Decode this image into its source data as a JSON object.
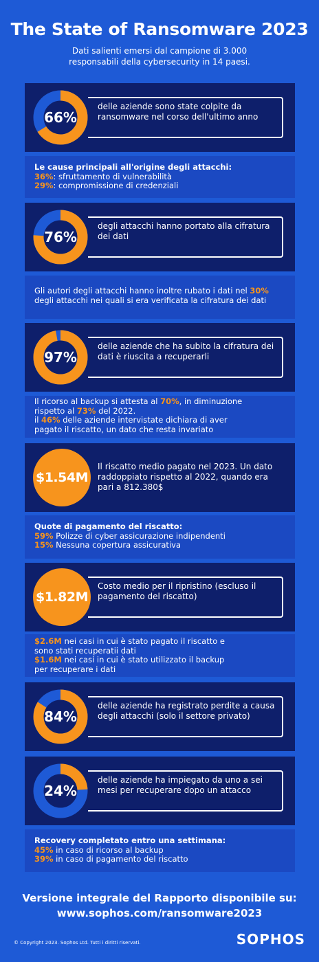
{
  "header": {
    "title": "The State of Ransomware 2023",
    "subtitle_line1": "Dati salienti emersi dal campione di 3.000",
    "subtitle_line2": "responsabili della cybersecurity in 14 paesi."
  },
  "colors": {
    "background": "#1e5ad6",
    "panel": "#0e1f6b",
    "note": "#1b49c2",
    "accent": "#f7941d",
    "ring_base": "#1e5ad6"
  },
  "stat1": {
    "value": "66%",
    "fraction": 0.66,
    "text": "delle aziende sono state colpite da ransomware nel corso dell'ultimo anno"
  },
  "note1": {
    "heading": "Le cause principali all'origine degli attacchi:",
    "p1": "36%",
    "t1": ": sfruttamento di vulnerabilità",
    "p2": "29%",
    "t2": ": compromissione di credenziali"
  },
  "stat2": {
    "value": "76%",
    "fraction": 0.76,
    "text": "degli attacchi hanno portato alla cifratura dei dati"
  },
  "note2": {
    "t1": "Gli autori degli attacchi hanno inoltre rubato i dati nel ",
    "p1": "30%",
    "t2": "degli attacchi nei quali si era verificata la cifratura dei dati"
  },
  "stat3": {
    "value": "97%",
    "fraction": 0.97,
    "text": "delle aziende che ha subito la cifratura dei dati è riuscita a recuperarli"
  },
  "note3": {
    "t1": "Il ricorso al backup si attesta al ",
    "p1": "70%",
    "t2": ", in diminuzione",
    "t3": "rispetto al ",
    "p2": "73%",
    "t4": " del 2022.",
    "t5": "il ",
    "p3": "46%",
    "t6": " delle aziende intervistate dichiara di aver",
    "t7": "pagato il riscatto, un dato che resta invariato"
  },
  "stat4": {
    "value": "$1.54M",
    "text": "Il riscatto medio pagato nel 2023. Un dato raddoppiato rispetto al 2022, quando era pari a 812.380$"
  },
  "note4": {
    "heading": "Quote di pagamento del riscatto:",
    "p1": "59%",
    "t1": " Polizze di cyber assicurazione indipendenti",
    "p2": "15%",
    "t2": " Nessuna copertura assicurativa"
  },
  "stat5": {
    "value": "$1.82M",
    "text": "Costo medio per il ripristino (escluso il pagamento del riscatto)"
  },
  "note5": {
    "p1": "$2.6M",
    "t1": " nei casi in cui è stato pagato il riscatto e",
    "t2": "sono stati recuperatii dati",
    "p2": "$1.6M",
    "t3": " nei casi in cui è stato utilizzato il backup",
    "t4": "per recuperare i dati"
  },
  "stat6": {
    "value": "84%",
    "fraction": 0.84,
    "text": "delle aziende ha registrato perdite a causa degli attacchi (solo il settore privato)"
  },
  "stat7": {
    "value": "24%",
    "fraction": 0.24,
    "text": "delle aziende ha impiegato da uno a sei mesi per recuperare dopo un attacco"
  },
  "note7": {
    "heading": "Recovery completato entro una settimana:",
    "p1": "45%",
    "t1": " in caso di ricorso al backup",
    "p2": "39%",
    "t2": " in caso di pagamento del riscatto"
  },
  "footer": {
    "cta_line1": "Versione integrale del Rapporto disponibile su:",
    "cta_line2": "www.sophos.com/ransomware2023",
    "copyright": "© Copyright 2023. Sophos Ltd. Tutti i diritti riservati.",
    "brand": "SOPHOS"
  }
}
